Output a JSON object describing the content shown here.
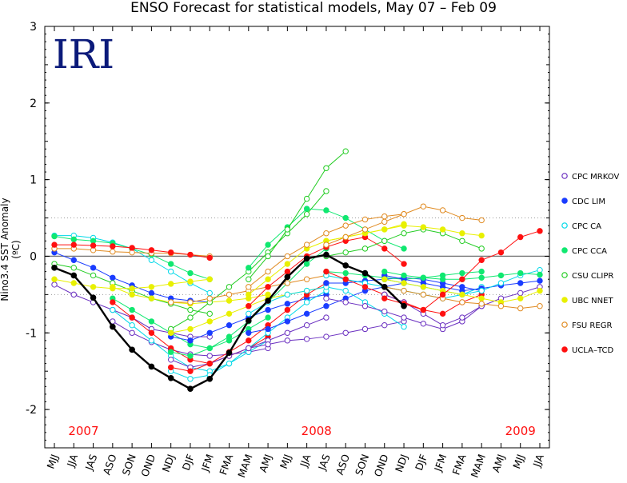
{
  "chart_data": {
    "type": "line",
    "title": "ENSO Forecast for statistical models, May 07 – Feb 09",
    "ylabel": "Nino3.4 SST Anomaly (ºC)",
    "logo": "IRI",
    "ylim": [
      -2.5,
      3
    ],
    "yticks": [
      -2,
      -1,
      0,
      1,
      2,
      3
    ],
    "categories": [
      "MJJ",
      "JJA",
      "JAS",
      "ASO",
      "SON",
      "OND",
      "NDJ",
      "DJF",
      "JFM",
      "FMA",
      "MAM",
      "AMJ",
      "MJJ",
      "JJA",
      "JAS",
      "ASO",
      "SON",
      "OND",
      "NDJ",
      "DJF",
      "JFM",
      "FMA",
      "MAM",
      "AMJ",
      "MJJ",
      "JJA"
    ],
    "year_labels": [
      {
        "text": "2007",
        "at": 1.5
      },
      {
        "text": "2008",
        "at": 13.5
      },
      {
        "text": "2009",
        "at": 24
      }
    ],
    "reference_lines": {
      "zero": 0,
      "dotted": [
        0.5,
        -0.5
      ]
    },
    "observed": {
      "color": "#000000",
      "start": 0,
      "values": [
        -0.15,
        -0.25,
        -0.54,
        -0.92,
        -1.22,
        -1.44,
        -1.59,
        -1.73,
        -1.6,
        -1.26,
        -0.84,
        -0.58,
        -0.27,
        -0.03,
        0.02,
        -0.12,
        -0.22,
        -0.4,
        -0.65
      ]
    },
    "series": [
      {
        "name": "CPC MRKOV",
        "color": "#6a2fc0",
        "hollow": true
      },
      {
        "name": "CDC LIM",
        "color": "#1a3cff",
        "hollow": false
      },
      {
        "name": "CPC CA",
        "color": "#00d8e8",
        "hollow": true
      },
      {
        "name": "CPC CCA",
        "color": "#10e870",
        "hollow": false
      },
      {
        "name": "CSU CLIPR",
        "color": "#22cc22",
        "hollow": true
      },
      {
        "name": "UBC NNET",
        "color": "#e8f000",
        "hollow": false
      },
      {
        "name": "FSU REGR",
        "color": "#e08a20",
        "hollow": true
      },
      {
        "name": "UCLA–TCD",
        "color": "#ff1010",
        "hollow": false
      }
    ],
    "forecasts": [
      {
        "model": 0,
        "start": 0,
        "values": [
          -0.37,
          -0.5,
          -0.6,
          -0.7,
          -0.8,
          -0.95,
          -1.0,
          -1.05,
          -1.05
        ]
      },
      {
        "model": 1,
        "start": 0,
        "values": [
          0.05,
          -0.05,
          -0.15,
          -0.28,
          -0.38,
          -0.48,
          -0.55,
          -0.58,
          -0.6
        ]
      },
      {
        "model": 2,
        "start": 0,
        "values": [
          0.27,
          0.27,
          0.24,
          0.18,
          0.1,
          -0.05,
          -0.2,
          -0.35,
          -0.48
        ]
      },
      {
        "model": 3,
        "start": 0,
        "values": [
          0.26,
          0.22,
          0.2,
          0.17,
          0.1,
          0.02,
          -0.1,
          -0.22,
          -0.3
        ]
      },
      {
        "model": 4,
        "start": 0,
        "values": [
          -0.1,
          -0.15,
          -0.25,
          -0.35,
          -0.45,
          -0.55,
          -0.62,
          -0.7,
          -0.75
        ]
      },
      {
        "model": 5,
        "start": 0,
        "values": [
          -0.3,
          -0.35,
          -0.4,
          -0.42,
          -0.42,
          -0.4,
          -0.36,
          -0.33,
          -0.3
        ]
      },
      {
        "model": 6,
        "start": 0,
        "values": [
          0.1,
          0.1,
          0.08,
          0.06,
          0.05,
          0.04,
          0.04,
          0.02,
          0.0
        ]
      },
      {
        "model": 7,
        "start": 0,
        "values": [
          0.15,
          0.15,
          0.14,
          0.13,
          0.11,
          0.08,
          0.05,
          0.02,
          -0.02
        ]
      },
      {
        "model": 0,
        "start": 3,
        "values": [
          -0.85,
          -1.0,
          -1.12,
          -1.22,
          -1.28,
          -1.3,
          -1.28,
          -1.25,
          -1.2
        ]
      },
      {
        "model": 2,
        "start": 3,
        "values": [
          -0.7,
          -0.9,
          -1.1,
          -1.3,
          -1.45,
          -1.5,
          -1.4,
          -1.25,
          -1.1
        ]
      },
      {
        "model": 3,
        "start": 3,
        "values": [
          -0.55,
          -0.7,
          -0.85,
          -1.0,
          -1.15,
          -1.2,
          -1.1,
          -0.95,
          -0.8
        ]
      },
      {
        "model": 7,
        "start": 3,
        "values": [
          -0.6,
          -0.8,
          -1.0,
          -1.2,
          -1.35,
          -1.4,
          -1.3,
          -1.2,
          -1.05
        ]
      },
      {
        "model": 5,
        "start": 3,
        "values": [
          -0.4,
          -0.5,
          -0.55,
          -0.6,
          -0.62,
          -0.6,
          -0.58,
          -0.55,
          -0.5
        ]
      },
      {
        "model": 0,
        "start": 6,
        "values": [
          -1.35,
          -1.45,
          -1.4,
          -1.3,
          -1.2,
          -1.1,
          -1.0,
          -0.9,
          -0.8
        ]
      },
      {
        "model": 1,
        "start": 6,
        "values": [
          -1.05,
          -1.1,
          -1.0,
          -0.9,
          -0.8,
          -0.7,
          -0.62,
          -0.55,
          -0.5
        ]
      },
      {
        "model": 2,
        "start": 6,
        "values": [
          -1.5,
          -1.6,
          -1.55,
          -1.4,
          -1.2,
          -1.0,
          -0.8,
          -0.6,
          -0.45
        ]
      },
      {
        "model": 3,
        "start": 6,
        "values": [
          -1.25,
          -1.3,
          -1.2,
          -1.05,
          -0.85,
          -0.6,
          -0.35,
          -0.1,
          0.1
        ]
      },
      {
        "model": 4,
        "start": 6,
        "values": [
          -0.95,
          -0.8,
          -0.6,
          -0.4,
          -0.2,
          0.05,
          0.3,
          0.55,
          0.85
        ]
      },
      {
        "model": 5,
        "start": 6,
        "values": [
          -1.0,
          -0.95,
          -0.85,
          -0.75,
          -0.65,
          -0.55,
          -0.5,
          -0.45,
          -0.4
        ]
      },
      {
        "model": 6,
        "start": 6,
        "values": [
          -0.6,
          -0.6,
          -0.55,
          -0.5,
          -0.45,
          -0.4,
          -0.35,
          -0.3,
          -0.25
        ]
      },
      {
        "model": 7,
        "start": 6,
        "values": [
          -1.45,
          -1.5,
          -1.4,
          -1.25,
          -1.1,
          -0.9,
          -0.7,
          -0.5,
          -0.35
        ]
      },
      {
        "model": 0,
        "start": 10,
        "values": [
          -1.2,
          -1.15,
          -1.1,
          -1.08,
          -1.05,
          -1.0,
          -0.95,
          -0.9,
          -0.85
        ]
      },
      {
        "model": 1,
        "start": 10,
        "values": [
          -1.0,
          -0.95,
          -0.85,
          -0.75,
          -0.65,
          -0.55,
          -0.45,
          -0.4,
          -0.35
        ]
      },
      {
        "model": 2,
        "start": 10,
        "values": [
          -0.75,
          -0.6,
          -0.5,
          -0.45,
          -0.4,
          -0.45,
          -0.6,
          -0.75,
          -0.92
        ]
      },
      {
        "model": 3,
        "start": 10,
        "values": [
          -0.15,
          0.15,
          0.38,
          0.62,
          0.6,
          0.5,
          0.35,
          0.2,
          0.1
        ]
      },
      {
        "model": 4,
        "start": 10,
        "values": [
          -0.3,
          0.0,
          0.35,
          0.75,
          1.15,
          1.37
        ]
      },
      {
        "model": 5,
        "start": 10,
        "values": [
          -0.5,
          -0.3,
          -0.1,
          0.1,
          0.2,
          0.25,
          0.3,
          0.35,
          0.42
        ]
      },
      {
        "model": 6,
        "start": 10,
        "values": [
          -0.4,
          -0.2,
          0.0,
          0.15,
          0.3,
          0.4,
          0.48,
          0.52,
          0.55
        ]
      },
      {
        "model": 7,
        "start": 10,
        "values": [
          -0.65,
          -0.4,
          -0.2,
          0.0,
          0.12,
          0.2,
          0.25,
          0.1,
          -0.1
        ]
      },
      {
        "model": 0,
        "start": 14,
        "values": [
          -0.55,
          -0.6,
          -0.65,
          -0.72,
          -0.8,
          -0.88,
          -0.95,
          -0.85,
          -0.65
        ]
      },
      {
        "model": 1,
        "start": 14,
        "values": [
          -0.35,
          -0.35,
          -0.32,
          -0.3,
          -0.28,
          -0.3,
          -0.35,
          -0.4,
          -0.45
        ]
      },
      {
        "model": 2,
        "start": 14,
        "values": [
          -0.25,
          -0.3,
          -0.35,
          -0.4,
          -0.45,
          -0.5,
          -0.55,
          -0.5,
          -0.4
        ]
      },
      {
        "model": 3,
        "start": 14,
        "values": [
          -0.2,
          -0.22,
          -0.25,
          -0.28,
          -0.3,
          -0.28,
          -0.25,
          -0.22,
          -0.2
        ]
      },
      {
        "model": 4,
        "start": 14,
        "values": [
          0.0,
          0.05,
          0.1,
          0.2,
          0.3,
          0.35,
          0.3,
          0.2,
          0.1
        ]
      },
      {
        "model": 5,
        "start": 14,
        "values": [
          0.2,
          0.25,
          0.3,
          0.35,
          0.4,
          0.38,
          0.35,
          0.3,
          0.27
        ]
      },
      {
        "model": 6,
        "start": 14,
        "values": [
          0.15,
          0.25,
          0.35,
          0.45,
          0.55,
          0.65,
          0.6,
          0.5,
          0.47
        ]
      },
      {
        "model": 7,
        "start": 14,
        "values": [
          -0.2,
          -0.3,
          -0.4,
          -0.5,
          -0.6,
          -0.7,
          -0.75,
          -0.6,
          -0.5
        ]
      },
      {
        "model": 0,
        "start": 17,
        "values": [
          -0.5,
          -0.6,
          -0.75,
          -0.9,
          -0.8,
          -0.65,
          -0.55,
          -0.48,
          -0.4
        ]
      },
      {
        "model": 1,
        "start": 17,
        "values": [
          -0.25,
          -0.3,
          -0.35,
          -0.4,
          -0.45,
          -0.42,
          -0.38,
          -0.35,
          -0.32
        ]
      },
      {
        "model": 2,
        "start": 17,
        "values": [
          -0.3,
          -0.35,
          -0.4,
          -0.45,
          -0.5,
          -0.45,
          -0.35,
          -0.25,
          -0.18
        ]
      },
      {
        "model": 3,
        "start": 17,
        "values": [
          -0.2,
          -0.25,
          -0.28,
          -0.3,
          -0.3,
          -0.28,
          -0.25,
          -0.22,
          -0.24
        ]
      },
      {
        "model": 5,
        "start": 17,
        "values": [
          -0.3,
          -0.35,
          -0.4,
          -0.45,
          -0.5,
          -0.55,
          -0.6,
          -0.55,
          -0.45
        ]
      },
      {
        "model": 6,
        "start": 17,
        "values": [
          -0.4,
          -0.45,
          -0.5,
          -0.55,
          -0.6,
          -0.62,
          -0.65,
          -0.68,
          -0.65
        ]
      },
      {
        "model": 7,
        "start": 17,
        "values": [
          -0.55,
          -0.62,
          -0.7,
          -0.5,
          -0.3,
          -0.05,
          0.05,
          0.25,
          0.33
        ]
      }
    ]
  }
}
